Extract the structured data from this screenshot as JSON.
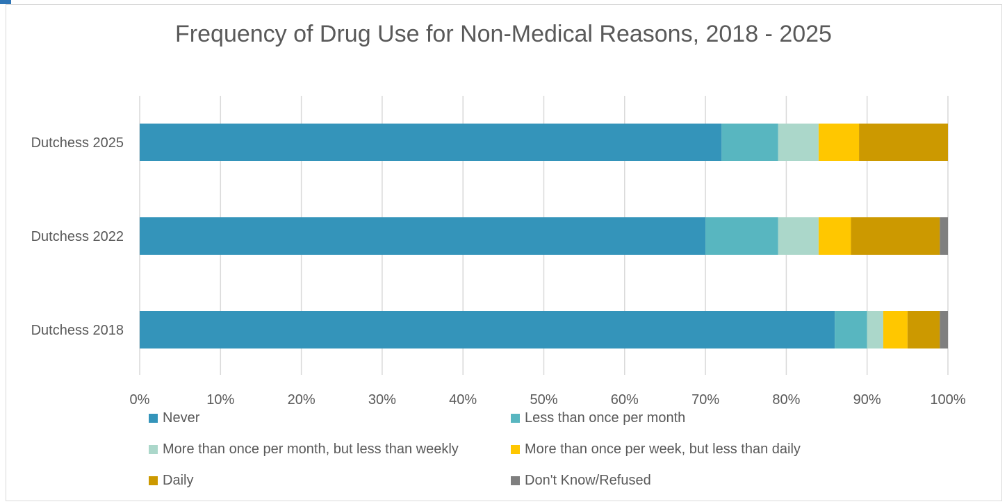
{
  "chart_data": {
    "type": "bar",
    "orientation": "horizontal",
    "stacked": true,
    "title": "Frequency of Drug Use for Non-Medical Reasons, 2018 - 2025",
    "categories": [
      "Dutchess 2025",
      "Dutchess 2022",
      "Dutchess 2018"
    ],
    "xlim": [
      0,
      100
    ],
    "x_ticks": [
      "0%",
      "10%",
      "20%",
      "30%",
      "40%",
      "50%",
      "60%",
      "70%",
      "80%",
      "90%",
      "100%"
    ],
    "grid": true,
    "legend_position": "bottom",
    "series": [
      {
        "name": "Never",
        "color": "#3494ba",
        "values": [
          72,
          70,
          86
        ]
      },
      {
        "name": "Less than once per month",
        "color": "#58b6c0",
        "values": [
          7,
          9,
          4
        ]
      },
      {
        "name": "More than once per month, but less than weekly",
        "color": "#abd7ca",
        "values": [
          5,
          5,
          2
        ]
      },
      {
        "name": "More than once per week, but less than daily",
        "color": "#ffc700",
        "values": [
          5,
          4,
          3
        ]
      },
      {
        "name": "Daily",
        "color": "#cc9900",
        "values": [
          11,
          11,
          4
        ]
      },
      {
        "name": "Don't Know/Refused",
        "color": "#7f7f7f",
        "values": [
          0,
          1,
          1
        ]
      }
    ]
  }
}
